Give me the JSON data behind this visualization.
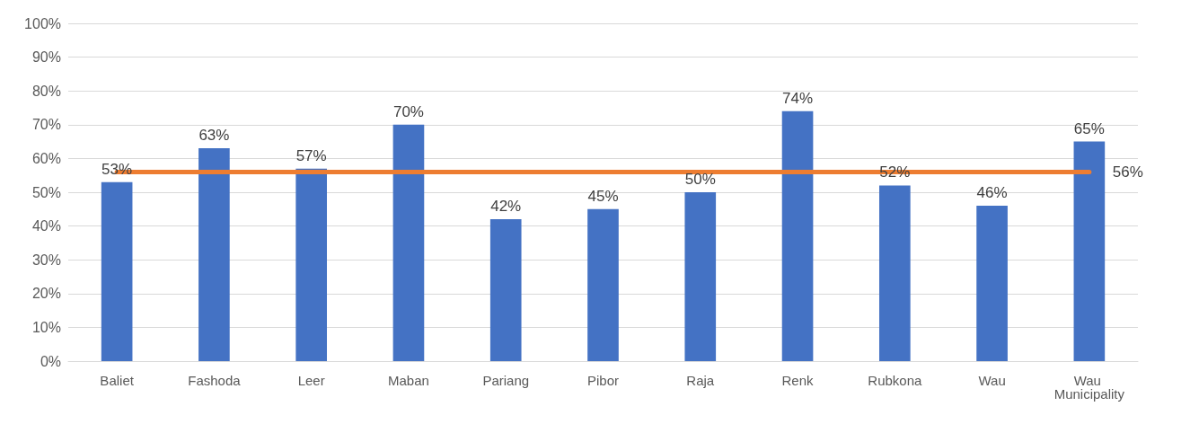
{
  "chart_data": {
    "type": "bar",
    "categories": [
      "Baliet",
      "Fashoda",
      "Leer",
      "Maban",
      "Pariang",
      "Pibor",
      "Raja",
      "Renk",
      "Rubkona",
      "Wau",
      "Wau Municipality"
    ],
    "series": [
      {
        "color": "#4472c4",
        "values": [
          53,
          63,
          57,
          70,
          42,
          45,
          50,
          74,
          52,
          46,
          65
        ],
        "value_labels": [
          "53%",
          "63%",
          "57%",
          "70%",
          "42%",
          "45%",
          "50%",
          "74%",
          "52%",
          "46%",
          "65%"
        ]
      },
      {
        "type": "line",
        "color": "#ed7d31",
        "values": [
          56,
          56,
          56,
          56,
          56,
          56,
          56,
          56,
          56,
          56,
          56
        ],
        "value_labels": [
          null,
          null,
          null,
          null,
          null,
          null,
          null,
          null,
          null,
          null,
          "56%"
        ]
      }
    ],
    "ylim": [
      0,
      100
    ],
    "yticks": [
      {
        "value": 0,
        "label": "0%"
      },
      {
        "value": 10,
        "label": "10%"
      },
      {
        "value": 20,
        "label": "20%"
      },
      {
        "value": 30,
        "label": "30%"
      },
      {
        "value": 40,
        "label": "40%"
      },
      {
        "value": 50,
        "label": "50%"
      },
      {
        "value": 60,
        "label": "60%"
      },
      {
        "value": 70,
        "label": "70%"
      },
      {
        "value": 80,
        "label": "80%"
      },
      {
        "value": 90,
        "label": "90%"
      },
      {
        "value": 100,
        "label": "100%"
      }
    ],
    "grid": "y",
    "marker": "none",
    "line_style": "solid"
  }
}
